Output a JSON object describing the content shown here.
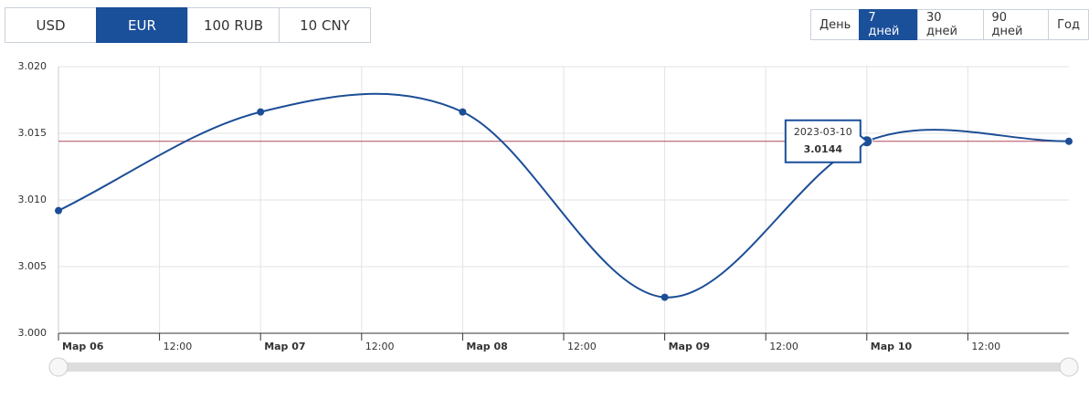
{
  "currency_tabs": {
    "items": [
      "USD",
      "EUR",
      "100 RUB",
      "10 CNY"
    ],
    "active": 1
  },
  "period_tabs": {
    "items": [
      "День",
      "7 дней",
      "30 дней",
      "90 дней",
      "Год"
    ],
    "active": 1
  },
  "chart_data": {
    "type": "line",
    "x": [
      0,
      1,
      2,
      3,
      4,
      5
    ],
    "series": [
      {
        "color": "#1c4e96",
        "values": [
          3.0092,
          3.0166,
          3.0166,
          3.0027,
          3.0144,
          3.0144
        ]
      }
    ],
    "xlim": [
      0,
      5
    ],
    "xticks": [
      {
        "value": 0,
        "label": "Мар 06"
      },
      {
        "value": 0.5,
        "label": "12:00"
      },
      {
        "value": 1,
        "label": "Мар 07"
      },
      {
        "value": 1.5,
        "label": "12:00"
      },
      {
        "value": 2,
        "label": "Мар 08"
      },
      {
        "value": 2.5,
        "label": "12:00"
      },
      {
        "value": 3,
        "label": "Мар 09"
      },
      {
        "value": 3.5,
        "label": "12:00"
      },
      {
        "value": 4,
        "label": "Мар 10"
      },
      {
        "value": 4.5,
        "label": "12:00"
      }
    ],
    "ylim": [
      3.0,
      3.02
    ],
    "yticks": [
      {
        "value": 3.0,
        "label": "3.000"
      },
      {
        "value": 3.005,
        "label": "3.005"
      },
      {
        "value": 3.01,
        "label": "3.010"
      },
      {
        "value": 3.015,
        "label": "3.015"
      },
      {
        "value": 3.02,
        "label": "3.020"
      }
    ],
    "grid": true,
    "plot_line": {
      "value": 3.0144,
      "color": "#b0485a"
    },
    "tooltip": {
      "point": 4,
      "date": "2023-03-10",
      "value": 3.0144
    }
  }
}
